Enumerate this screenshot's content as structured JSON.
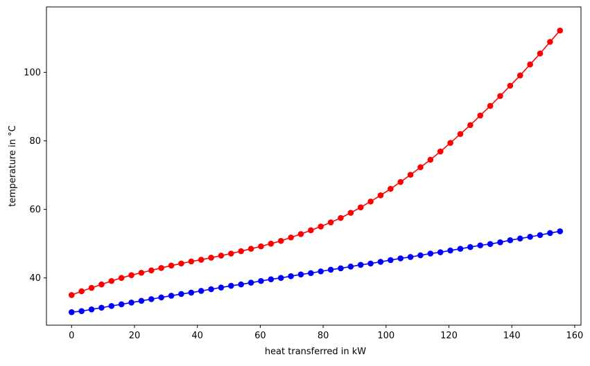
{
  "chart_data": {
    "type": "line",
    "title": "",
    "xlabel": "heat transferred in kW",
    "ylabel": "temperature in °C",
    "xlim": [
      -8,
      162
    ],
    "ylim": [
      26.2,
      119.1
    ],
    "xticks": [
      0,
      20,
      40,
      60,
      80,
      100,
      120,
      140,
      160
    ],
    "yticks": [
      40,
      60,
      80,
      100
    ],
    "grid": false,
    "legend": "none",
    "series": [
      {
        "color": "#ff0000",
        "marker": "circle",
        "x": [
          0,
          3.17,
          6.34,
          9.51,
          12.68,
          15.85,
          19.02,
          22.19,
          25.36,
          28.53,
          31.7,
          34.87,
          38.04,
          41.21,
          44.38,
          47.55,
          50.72,
          53.89,
          57.06,
          60.23,
          63.4,
          66.57,
          69.74,
          72.91,
          76.08,
          79.25,
          82.42,
          85.59,
          88.76,
          91.93,
          95.1,
          98.27,
          101.44,
          104.61,
          107.78,
          110.95,
          114.12,
          117.29,
          120.46,
          123.63,
          126.8,
          129.97,
          133.14,
          136.31,
          139.48,
          142.65,
          145.82,
          148.99,
          152.16,
          155.33
        ],
        "y": [
          35.0,
          36.1,
          37.1,
          38.1,
          39.1,
          40.0,
          40.8,
          41.5,
          42.2,
          42.9,
          43.6,
          44.2,
          44.8,
          45.3,
          45.9,
          46.5,
          47.1,
          47.8,
          48.5,
          49.2,
          50.0,
          50.8,
          51.8,
          52.8,
          53.9,
          55.0,
          56.2,
          57.5,
          59.0,
          60.6,
          62.3,
          64.1,
          66.0,
          68.0,
          70.1,
          72.3,
          74.5,
          76.9,
          79.4,
          82.0,
          84.6,
          87.4,
          90.2,
          93.1,
          96.1,
          99.1,
          102.3,
          105.5,
          108.9,
          112.2
        ]
      },
      {
        "color": "#0000ff",
        "marker": "circle",
        "x": [
          0,
          3.17,
          6.34,
          9.51,
          12.68,
          15.85,
          19.02,
          22.19,
          25.36,
          28.53,
          31.7,
          34.87,
          38.04,
          41.21,
          44.38,
          47.55,
          50.72,
          53.89,
          57.06,
          60.23,
          63.4,
          66.57,
          69.74,
          72.91,
          76.08,
          79.25,
          82.42,
          85.59,
          88.76,
          91.93,
          95.1,
          98.27,
          101.44,
          104.61,
          107.78,
          110.95,
          114.12,
          117.29,
          120.46,
          123.63,
          126.8,
          129.97,
          133.14,
          136.31,
          139.48,
          142.65,
          145.82,
          148.99,
          152.16,
          155.33
        ],
        "y": [
          30.0,
          30.3,
          30.8,
          31.3,
          31.8,
          32.3,
          32.8,
          33.3,
          33.8,
          34.3,
          34.8,
          35.3,
          35.7,
          36.2,
          36.7,
          37.2,
          37.7,
          38.1,
          38.6,
          39.1,
          39.6,
          40.0,
          40.5,
          41.0,
          41.4,
          41.9,
          42.4,
          42.8,
          43.3,
          43.8,
          44.2,
          44.7,
          45.2,
          45.7,
          46.1,
          46.6,
          47.1,
          47.5,
          48.0,
          48.5,
          49.0,
          49.5,
          49.9,
          50.4,
          51.0,
          51.5,
          52.0,
          52.5,
          53.1,
          53.6
        ]
      }
    ]
  }
}
